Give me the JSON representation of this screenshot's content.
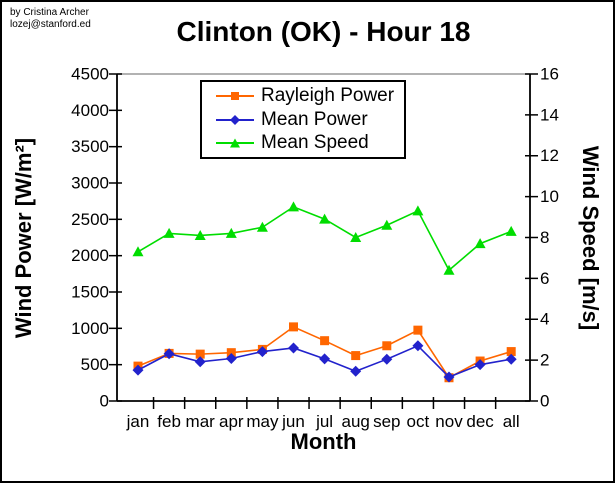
{
  "attribution": {
    "line1": "by Cristina Archer",
    "line2": "lozej@stanford.ed"
  },
  "chart_data": {
    "type": "line",
    "title": "Clinton (OK) - Hour 18",
    "xlabel": "Month",
    "ylabel_left": "Wind Power [W/m²]",
    "ylabel_right": "Wind Speed [m/s]",
    "categories": [
      "jan",
      "feb",
      "mar",
      "apr",
      "may",
      "jun",
      "jul",
      "aug",
      "sep",
      "oct",
      "nov",
      "dec",
      "all"
    ],
    "y_left_axis": {
      "min": 0,
      "max": 4500,
      "step": 500
    },
    "y_right_axis": {
      "min": 0,
      "max": 16,
      "step": 2
    },
    "grid": false,
    "legend_position": "top-center-inside",
    "series": [
      {
        "name": "Rayleigh Power",
        "axis": "left",
        "color": "#FF6600",
        "marker": "square",
        "values": [
          480,
          655,
          645,
          665,
          710,
          1020,
          830,
          625,
          760,
          975,
          320,
          550,
          680
        ]
      },
      {
        "name": "Mean Power",
        "axis": "left",
        "color": "#2222CC",
        "marker": "diamond",
        "values": [
          425,
          650,
          540,
          585,
          680,
          730,
          580,
          410,
          575,
          760,
          330,
          500,
          575
        ]
      },
      {
        "name": "Mean Speed",
        "axis": "right",
        "color": "#00DD00",
        "marker": "triangle",
        "values": [
          7.3,
          8.2,
          8.1,
          8.2,
          8.5,
          9.5,
          8.9,
          8.0,
          8.6,
          9.3,
          6.4,
          7.7,
          8.3
        ]
      }
    ],
    "colors": {
      "axis": "#000000",
      "plot_top_border": "#999999",
      "background": "#ffffff"
    }
  }
}
